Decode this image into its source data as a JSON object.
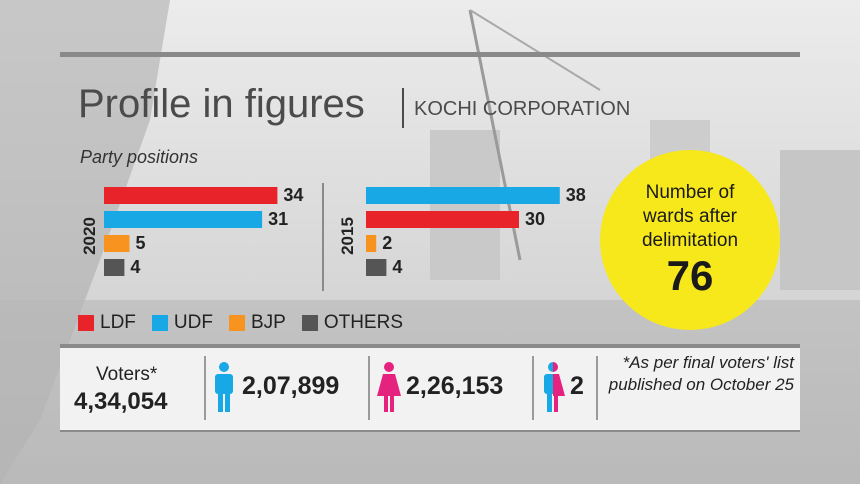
{
  "header": {
    "title": "Profile in figures",
    "subtitle": "KOCHI CORPORATION"
  },
  "section_label": "Party positions",
  "chart_data": [
    {
      "type": "bar",
      "orientation": "horizontal",
      "year_label": "2020",
      "categories": [
        "LDF",
        "UDF",
        "BJP",
        "OTHERS"
      ],
      "values": [
        34,
        31,
        5,
        4
      ],
      "colors": [
        "#e8242a",
        "#19a8e6",
        "#f7931e",
        "#555555"
      ]
    },
    {
      "type": "bar",
      "orientation": "horizontal",
      "year_label": "2015",
      "categories": [
        "UDF",
        "LDF",
        "BJP",
        "OTHERS"
      ],
      "values": [
        38,
        30,
        2,
        4
      ],
      "colors": [
        "#19a8e6",
        "#e8242a",
        "#f7931e",
        "#555555"
      ]
    }
  ],
  "legend": [
    {
      "label": "LDF",
      "color": "#e8242a"
    },
    {
      "label": "UDF",
      "color": "#19a8e6"
    },
    {
      "label": "BJP",
      "color": "#f7931e"
    },
    {
      "label": "OTHERS",
      "color": "#555555"
    }
  ],
  "wards": {
    "label": "Number of wards after delimitation",
    "value": "76"
  },
  "voters": {
    "label": "Voters*",
    "total": "4,34,054",
    "male": "2,07,899",
    "female": "2,26,153",
    "transgender": "2",
    "male_color": "#19a8e6",
    "female_color": "#e5237f",
    "note": "*As per final voters' list published on October 25"
  }
}
